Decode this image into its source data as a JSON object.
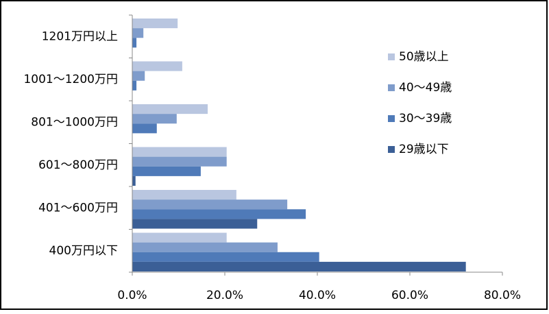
{
  "chart_data": {
    "type": "hbar",
    "categories": [
      "1201万円以上",
      "1001～1200万円",
      "801～1000万円",
      "601～800万円",
      "401～600万円",
      "400万円以下"
    ],
    "series": [
      {
        "name": "50歳以上",
        "color": "#b9c6e0",
        "values": [
          9.8,
          10.8,
          16.3,
          20.4,
          22.5,
          20.4
        ]
      },
      {
        "name": "40～49歳",
        "color": "#7f9ccb",
        "values": [
          2.4,
          2.7,
          9.6,
          20.4,
          33.5,
          31.4
        ]
      },
      {
        "name": "30～39歳",
        "color": "#4f7ab8",
        "values": [
          0.9,
          0.9,
          5.3,
          14.8,
          37.5,
          40.4
        ]
      },
      {
        "name": "29歳以下",
        "color": "#3b5f96",
        "values": [
          0,
          0,
          0,
          0.7,
          27.0,
          72.1
        ]
      }
    ],
    "xlim": [
      0,
      80
    ],
    "xticks": [
      {
        "value": 0,
        "label": "0.0%"
      },
      {
        "value": 20,
        "label": "20.0%"
      },
      {
        "value": 40,
        "label": "40.0%"
      },
      {
        "value": 60,
        "label": "60.0%"
      },
      {
        "value": 80,
        "label": "80.0%"
      }
    ],
    "legend": "right"
  }
}
